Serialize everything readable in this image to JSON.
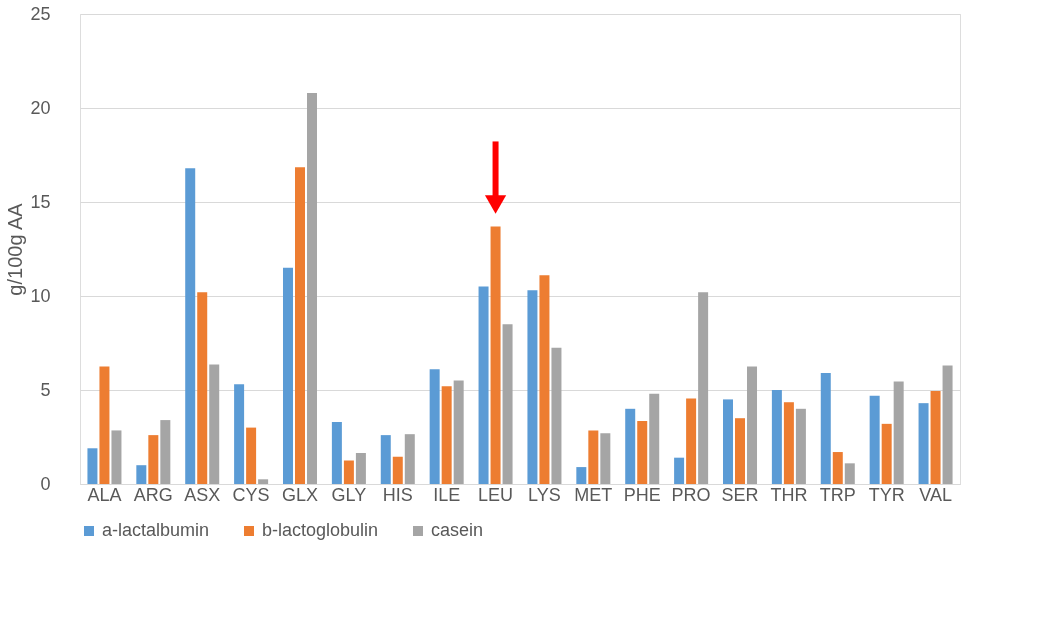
{
  "chart_data": {
    "type": "bar",
    "ylabel": "g/100g AA",
    "categories": [
      "ALA",
      "ARG",
      "ASX",
      "CYS",
      "GLX",
      "GLY",
      "HIS",
      "ILE",
      "LEU",
      "LYS",
      "MET",
      "PHE",
      "PRO",
      "SER",
      "THR",
      "TRP",
      "TYR",
      "VAL"
    ],
    "series": [
      {
        "name": "a-lactalbumin",
        "color": "#5b9bd5",
        "values": [
          1.9,
          1.0,
          16.8,
          5.3,
          11.5,
          3.3,
          2.6,
          6.1,
          10.5,
          10.3,
          0.9,
          4.0,
          1.4,
          4.5,
          5.0,
          5.9,
          4.7,
          4.3
        ]
      },
      {
        "name": "b-lactoglobulin",
        "color": "#ed7d31",
        "values": [
          6.25,
          2.6,
          10.2,
          3.0,
          16.85,
          1.25,
          1.45,
          5.2,
          13.7,
          11.1,
          2.85,
          3.35,
          4.55,
          3.5,
          4.35,
          1.7,
          3.2,
          4.95
        ]
      },
      {
        "name": "casein",
        "color": "#a5a5a5",
        "values": [
          2.85,
          3.4,
          6.35,
          0.25,
          20.8,
          1.65,
          2.65,
          5.5,
          8.5,
          7.25,
          2.7,
          4.8,
          10.2,
          6.25,
          4.0,
          1.1,
          5.45,
          6.3
        ]
      }
    ],
    "ylim": [
      0,
      25
    ],
    "yticks": [
      0,
      5,
      10,
      15,
      20,
      25
    ],
    "grid": "y",
    "legend": "bottom"
  }
}
